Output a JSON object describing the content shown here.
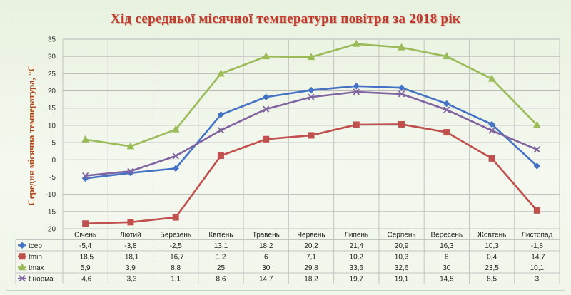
{
  "chart_data": {
    "type": "line",
    "title": "Хід  середньої місячної  температури повітря за 2018 рік",
    "ylabel": "Середня  місячна  температура, °С",
    "xlabel": "",
    "ylim": [
      -20,
      35
    ],
    "yticks": [
      -20,
      -15,
      -10,
      -5,
      0,
      5,
      10,
      15,
      20,
      25,
      30,
      35
    ],
    "grid": true,
    "legend": "table-below",
    "categories": [
      "Січень",
      "Лютий",
      "Березень",
      "Квітень",
      "Травень",
      "Червень",
      "Липень",
      "Серпень",
      "Вересень",
      "Жовтень",
      "Листопад"
    ],
    "series": [
      {
        "name": "tсер",
        "color": "#4472c4",
        "marker": "diamond",
        "values": [
          -5.4,
          -3.8,
          -2.5,
          13.1,
          18.2,
          20.2,
          21.4,
          20.9,
          16.3,
          10.3,
          -1.8
        ],
        "labels": [
          "-5,4",
          "-3,8",
          "-2,5",
          "13,1",
          "18,2",
          "20,2",
          "21,4",
          "20,9",
          "16,3",
          "10,3",
          "-1,8"
        ]
      },
      {
        "name": "tmin",
        "color": "#c0504d",
        "marker": "square",
        "values": [
          -18.5,
          -18.1,
          -16.7,
          1.2,
          6,
          7.1,
          10.2,
          10.3,
          8,
          0.4,
          -14.7
        ],
        "labels": [
          "-18,5",
          "-18,1",
          "-16,7",
          "1,2",
          "6",
          "7,1",
          "10,2",
          "10,3",
          "8",
          "0,4",
          "-14,7"
        ]
      },
      {
        "name": "tmax",
        "color": "#9bbb59",
        "marker": "triangle",
        "values": [
          5.9,
          3.9,
          8.8,
          25,
          30,
          29.8,
          33.6,
          32.6,
          30,
          23.5,
          10.1
        ],
        "labels": [
          "5,9",
          "3,9",
          "8,8",
          "25",
          "30",
          "29,8",
          "33,6",
          "32,6",
          "30",
          "23,5",
          "10,1"
        ]
      },
      {
        "name": "t норма",
        "color": "#8064a2",
        "marker": "x",
        "values": [
          -4.6,
          -3.3,
          1.1,
          8.6,
          14.7,
          18.2,
          19.7,
          19.1,
          14.5,
          8.5,
          3
        ],
        "labels": [
          "-4,6",
          "-3,3",
          "1,1",
          "8,6",
          "14,7",
          "18,2",
          "19,7",
          "19,1",
          "14,5",
          "8,5",
          "3"
        ]
      }
    ]
  }
}
